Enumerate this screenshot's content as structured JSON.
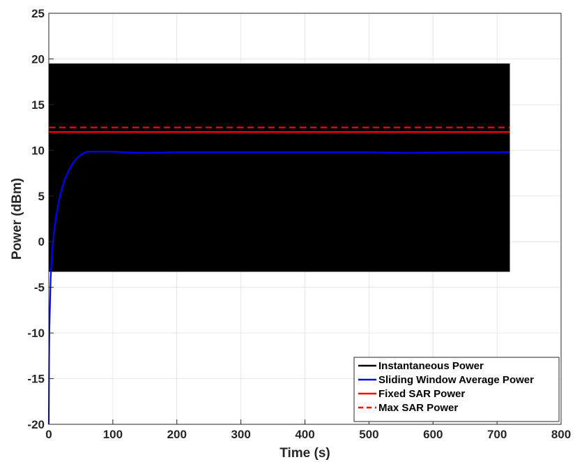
{
  "chart_data": {
    "type": "line",
    "title": "",
    "xlabel": "Time (s)",
    "ylabel": "Power (dBm)",
    "xlim": [
      0,
      800
    ],
    "ylim": [
      -20,
      25
    ],
    "xticks": [
      0,
      100,
      200,
      300,
      400,
      500,
      600,
      700,
      800
    ],
    "yticks": [
      -20,
      -15,
      -10,
      -5,
      0,
      5,
      10,
      15,
      20,
      25
    ],
    "grid": true,
    "legend_position": "bottom-right",
    "series": [
      {
        "name": "Instantaneous Power",
        "style": "solid",
        "color": "#000000",
        "rendering": "dense-band",
        "x_range": [
          0,
          720
        ],
        "y_min": -3.3,
        "y_max": 19.5
      },
      {
        "name": "Sliding Window Average Power",
        "style": "solid",
        "color": "#0000ff",
        "x": [
          0,
          0.5,
          1,
          2,
          3,
          5,
          8,
          12,
          16,
          20,
          25,
          30,
          35,
          40,
          45,
          50,
          55,
          60,
          70,
          100,
          130,
          150,
          180,
          200,
          250,
          300,
          350,
          400,
          450,
          500,
          530,
          560,
          600,
          650,
          700,
          720
        ],
        "y": [
          -20,
          -13,
          -9.5,
          -6.5,
          -3.9,
          -1.2,
          1.0,
          3.0,
          4.5,
          5.7,
          6.8,
          7.6,
          8.3,
          8.8,
          9.2,
          9.5,
          9.7,
          9.85,
          9.85,
          9.85,
          9.75,
          9.7,
          9.75,
          9.8,
          9.8,
          9.8,
          9.8,
          9.8,
          9.8,
          9.8,
          9.75,
          9.7,
          9.75,
          9.8,
          9.8,
          9.8
        ]
      },
      {
        "name": "Fixed SAR Power",
        "style": "solid",
        "color": "#ff0000",
        "x": [
          0,
          720
        ],
        "y": [
          12,
          12
        ]
      },
      {
        "name": "Max SAR Power",
        "style": "dashed",
        "color": "#ff0000",
        "x": [
          0,
          720
        ],
        "y": [
          12.5,
          12.5
        ]
      }
    ]
  }
}
